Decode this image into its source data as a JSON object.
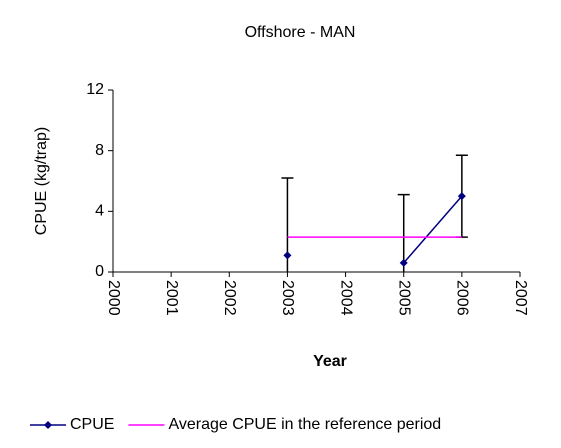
{
  "chart_data": {
    "type": "line",
    "title": "Offshore - MAN",
    "x_label": "Year",
    "y_label": "CPUE (kg/trap)",
    "xlim": [
      2000,
      2007
    ],
    "xticks": [
      2000,
      2001,
      2002,
      2003,
      2004,
      2005,
      2006,
      2007
    ],
    "ylim": [
      0,
      12
    ],
    "yticks": [
      0,
      4,
      8,
      12
    ],
    "series": [
      {
        "name": "CPUE",
        "color": "#000080",
        "x": [
          2003,
          2004,
          2005,
          2006
        ],
        "values": [
          1.1,
          null,
          0.6,
          5.0
        ],
        "errors": [
          5.1,
          null,
          4.5,
          2.7
        ]
      },
      {
        "name": "Average CPUE in the reference period",
        "color": "#ff00ff",
        "x": [
          2003,
          2006
        ],
        "values": [
          2.3,
          2.3
        ]
      }
    ]
  }
}
